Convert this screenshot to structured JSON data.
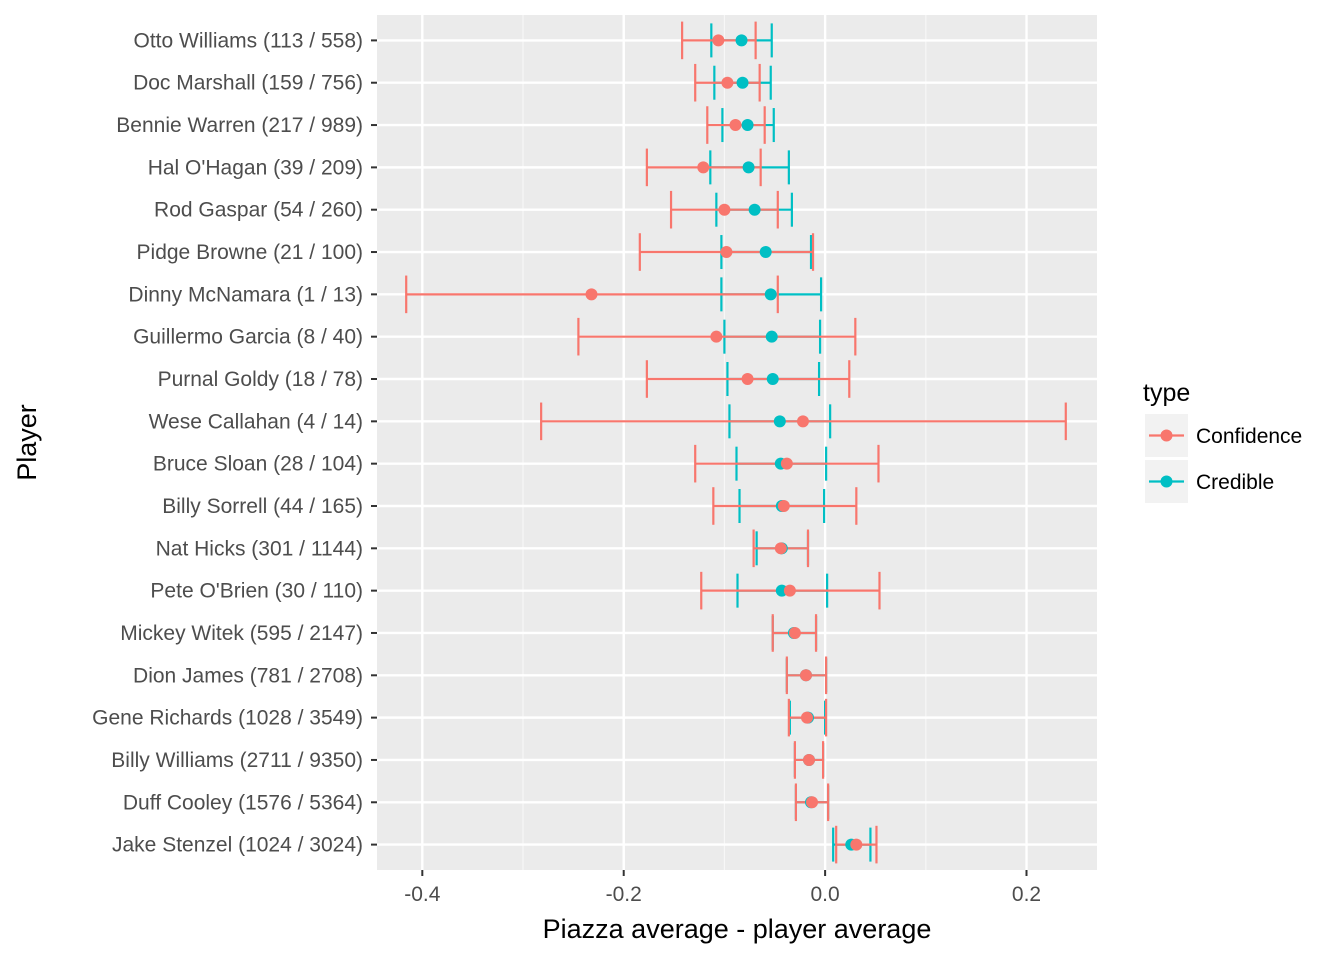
{
  "chart_data": {
    "type": "scatter",
    "subtype": "errorbar-dotplot",
    "title": "",
    "xlabel": "Piazza average - player average",
    "ylabel": "Player",
    "xlim": [
      -0.445,
      0.27
    ],
    "xticks": [
      -0.4,
      -0.2,
      0.0,
      0.2
    ],
    "xtick_labels": [
      "-0.4",
      "-0.2",
      "0.0",
      "0.2"
    ],
    "grid": true,
    "legend": {
      "title": "type",
      "position": "right",
      "entries": [
        {
          "name": "Confidence",
          "color": "#F8766D"
        },
        {
          "name": "Credible",
          "color": "#00BFC4"
        }
      ]
    },
    "categories": [
      "Otto Williams (113 / 558)",
      "Doc Marshall (159 / 756)",
      "Bennie Warren (217 / 989)",
      "Hal O'Hagan (39 / 209)",
      "Rod Gaspar (54 / 260)",
      "Pidge Browne (21 / 100)",
      "Dinny McNamara (1 / 13)",
      "Guillermo Garcia (8 / 40)",
      "Purnal Goldy (18 / 78)",
      "Wese Callahan (4 / 14)",
      "Bruce Sloan (28 / 104)",
      "Billy Sorrell (44 / 165)",
      "Nat Hicks (301 / 1144)",
      "Pete O'Brien (30 / 110)",
      "Mickey Witek (595 / 2147)",
      "Dion James (781 / 2708)",
      "Gene Richards (1028 / 3549)",
      "Billy Williams (2711 / 9350)",
      "Duff Cooley (1576 / 5364)",
      "Jake Stenzel (1024 / 3024)"
    ],
    "series": [
      {
        "name": "Confidence",
        "color": "#F8766D",
        "estimate": [
          -0.106,
          -0.097,
          -0.089,
          -0.121,
          -0.1,
          -0.098,
          -0.232,
          -0.108,
          -0.077,
          -0.022,
          -0.038,
          -0.041,
          -0.044,
          -0.035,
          -0.03,
          -0.019,
          -0.018,
          -0.016,
          -0.013,
          0.031
        ],
        "lower": [
          -0.142,
          -0.129,
          -0.117,
          -0.177,
          -0.153,
          -0.184,
          -0.416,
          -0.245,
          -0.177,
          -0.282,
          -0.129,
          -0.111,
          -0.071,
          -0.123,
          -0.052,
          -0.038,
          -0.036,
          -0.03,
          -0.029,
          0.011
        ],
        "upper": [
          -0.069,
          -0.065,
          -0.06,
          -0.064,
          -0.047,
          -0.012,
          -0.047,
          0.03,
          0.024,
          0.239,
          0.053,
          0.031,
          -0.017,
          0.054,
          -0.009,
          0.001,
          0.001,
          -0.002,
          0.003,
          0.051
        ]
      },
      {
        "name": "Credible",
        "color": "#00BFC4",
        "estimate": [
          -0.083,
          -0.082,
          -0.077,
          -0.076,
          -0.07,
          -0.059,
          -0.054,
          -0.053,
          -0.052,
          -0.045,
          -0.044,
          -0.043,
          -0.043,
          -0.043,
          -0.031,
          -0.019,
          -0.017,
          -0.016,
          -0.014,
          0.026
        ],
        "lower": [
          -0.113,
          -0.11,
          -0.102,
          -0.114,
          -0.108,
          -0.103,
          -0.103,
          -0.1,
          -0.097,
          -0.095,
          -0.088,
          -0.085,
          -0.068,
          -0.087,
          -0.052,
          -0.038,
          -0.035,
          -0.03,
          -0.029,
          0.008
        ],
        "upper": [
          -0.053,
          -0.054,
          -0.051,
          -0.036,
          -0.033,
          -0.014,
          -0.004,
          -0.005,
          -0.006,
          0.005,
          0.001,
          -0.001,
          -0.017,
          0.002,
          -0.009,
          0.001,
          0.0,
          -0.002,
          0.003,
          0.045
        ]
      }
    ]
  }
}
